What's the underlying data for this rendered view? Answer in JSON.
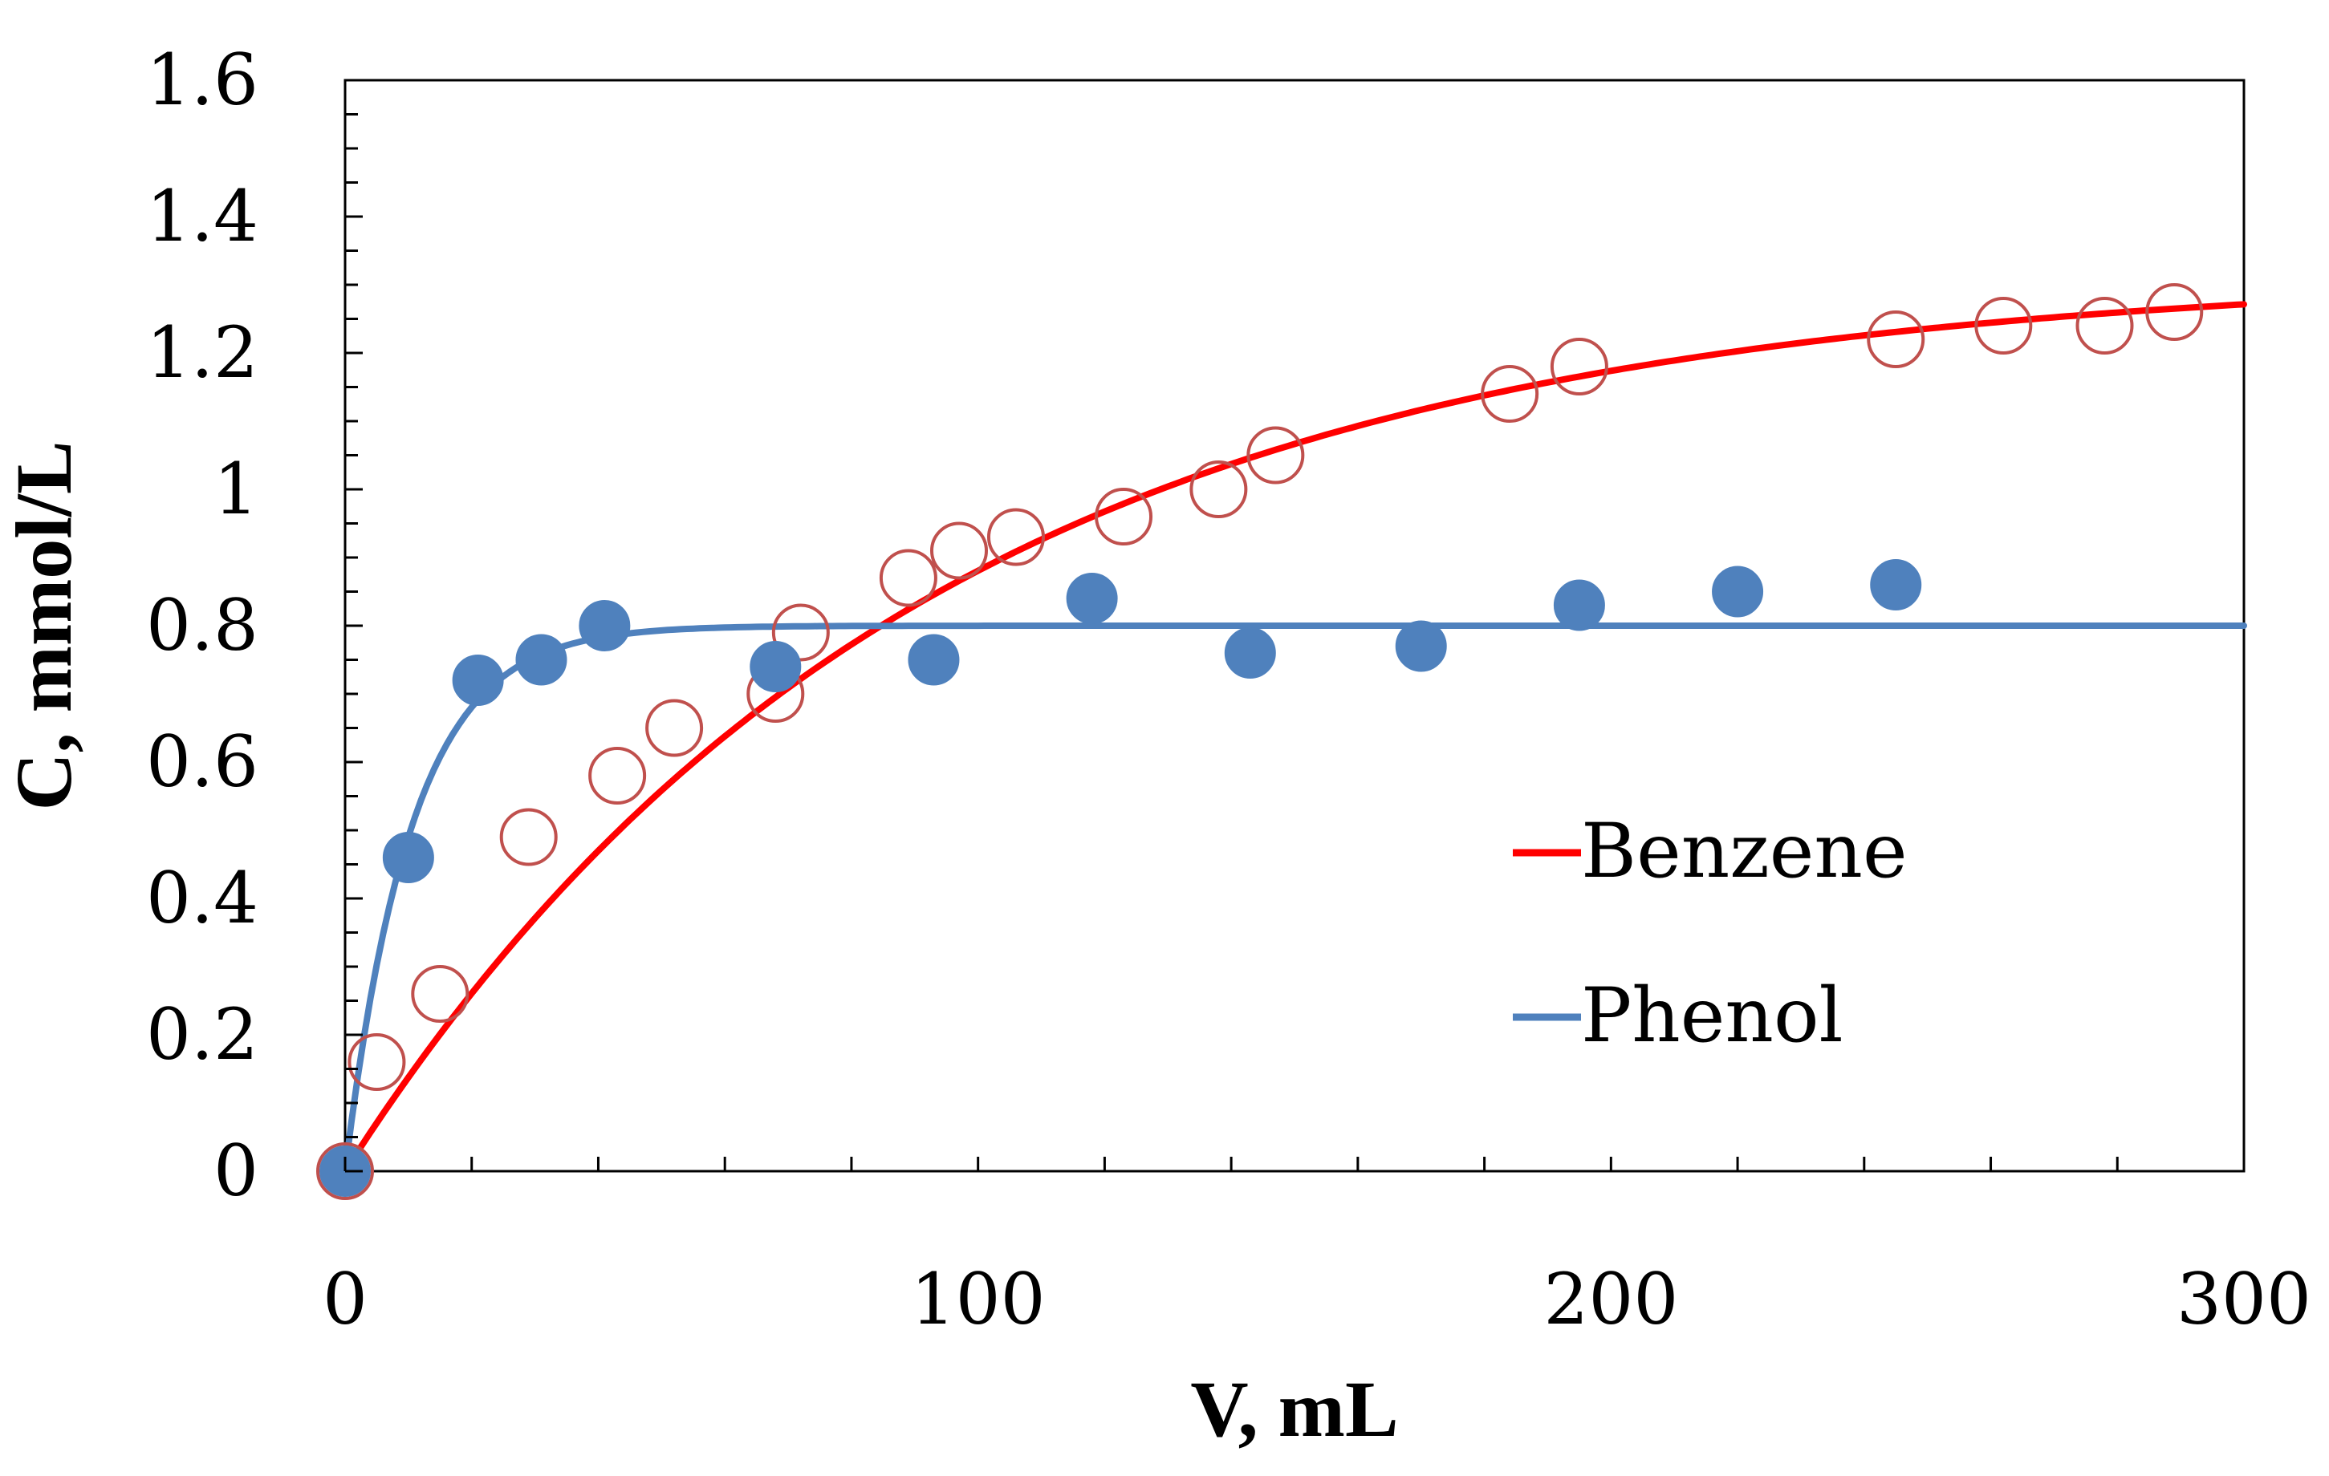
{
  "chart_data": {
    "type": "scatter",
    "title": "",
    "xlabel": "V, mL",
    "ylabel": "C, mmol/L",
    "xlim": [
      0,
      300
    ],
    "ylim": [
      0,
      1.6
    ],
    "x_ticks": [
      0,
      100,
      200,
      300
    ],
    "x_tick_labels": [
      "0",
      "100",
      "200",
      "300"
    ],
    "y_ticks": [
      0,
      0.2,
      0.4,
      0.6,
      0.8,
      1.0,
      1.2,
      1.4,
      1.6
    ],
    "y_tick_labels": [
      "0",
      "0.2",
      "0.4",
      "0.6",
      "0.8",
      "1",
      "1.2",
      "1.4",
      "1.6"
    ],
    "grid": false,
    "legend_position": "center-right",
    "series": [
      {
        "name": "Benzene",
        "color": "#ff0000",
        "marker_color": "#c0504d",
        "marker": "open-circle",
        "points": [
          [
            0,
            0
          ],
          [
            5,
            0.16
          ],
          [
            15,
            0.26
          ],
          [
            29,
            0.49
          ],
          [
            43,
            0.58
          ],
          [
            52,
            0.65
          ],
          [
            68,
            0.7
          ],
          [
            72,
            0.79
          ],
          [
            89,
            0.87
          ],
          [
            97,
            0.91
          ],
          [
            106,
            0.93
          ],
          [
            123,
            0.96
          ],
          [
            138,
            1.0
          ],
          [
            147,
            1.05
          ],
          [
            184,
            1.14
          ],
          [
            195,
            1.18
          ],
          [
            245,
            1.22
          ],
          [
            262,
            1.24
          ],
          [
            278,
            1.24
          ],
          [
            289,
            1.26
          ]
        ],
        "fit": {
          "model": "C = Cmax*(1-exp(-k*V))",
          "Cmax": 1.32,
          "k": 0.011
        }
      },
      {
        "name": "Phenol",
        "color": "#4f81bd",
        "marker_color": "#4f81bd",
        "marker": "filled-circle",
        "points": [
          [
            0,
            0
          ],
          [
            10,
            0.46
          ],
          [
            21,
            0.72
          ],
          [
            31,
            0.75
          ],
          [
            41,
            0.8
          ],
          [
            68,
            0.74
          ],
          [
            93,
            0.75
          ],
          [
            118,
            0.84
          ],
          [
            143,
            0.76
          ],
          [
            170,
            0.77
          ],
          [
            195,
            0.83
          ],
          [
            220,
            0.85
          ],
          [
            245,
            0.86
          ]
        ],
        "fit": {
          "model": "C = Cmax*(1-exp(-k*V))",
          "Cmax": 0.8,
          "k": 0.095
        }
      }
    ]
  }
}
